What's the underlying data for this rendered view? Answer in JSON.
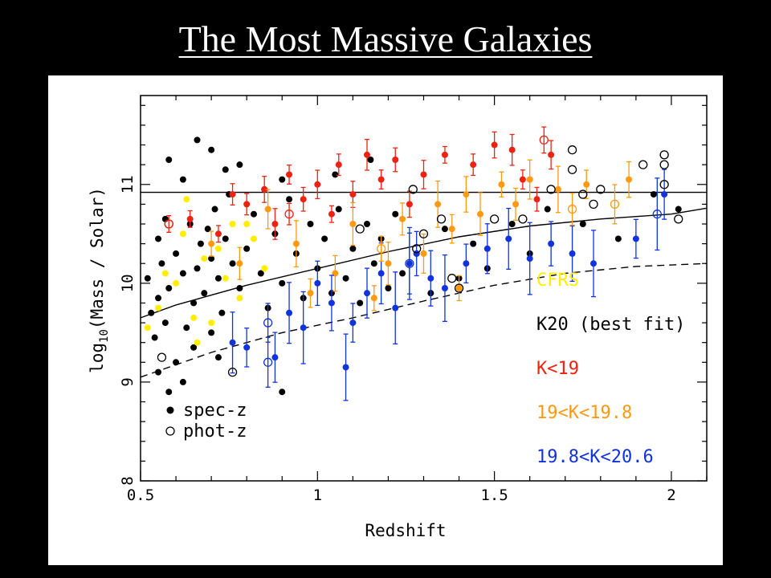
{
  "slide": {
    "title": "The Most Massive Galaxies"
  },
  "colors": {
    "background": "#000000",
    "title": "#ffffff",
    "panel": "#ffffff",
    "K20": "#000000",
    "CFRS": "#ffee00",
    "K19": "#ee2211",
    "K19_19.8": "#ff9911",
    "K19.8_20.6": "#1133dd"
  },
  "chart_data": {
    "type": "scatter",
    "xlabel": "Redshift",
    "ylabel_parts": {
      "base": "log",
      "sub": "10",
      "rest": "(Mass / Solar)"
    },
    "xlim": [
      0.5,
      2.1
    ],
    "ylim": [
      8,
      11.9
    ],
    "xticks": [
      "0.5",
      "1",
      "1.5",
      "2"
    ],
    "yticks": [
      "8",
      "9",
      "10",
      "11"
    ],
    "grid": false,
    "legend_color_position": "middle-right",
    "legend_marker_position": "bottom-left",
    "legend_color": [
      "CFRS",
      "K20 (best fit)",
      "K<19",
      "19<K<19.8",
      "19.8<K<20.6"
    ],
    "legend_marker": [
      "spec-z",
      "phot-z"
    ],
    "lines": [
      {
        "style": "solid",
        "x": [
          0.5,
          2.1
        ],
        "y": [
          10.92,
          10.92
        ]
      },
      {
        "style": "solid",
        "x": [
          0.5,
          0.6,
          0.8,
          1.0,
          1.2,
          1.4,
          1.6,
          1.8,
          2.0,
          2.1
        ],
        "y": [
          9.65,
          9.78,
          9.98,
          10.15,
          10.32,
          10.47,
          10.58,
          10.65,
          10.7,
          10.76
        ]
      },
      {
        "style": "dashed",
        "x": [
          0.5,
          0.7,
          0.9,
          1.1,
          1.3,
          1.5,
          1.7,
          1.9,
          2.1
        ],
        "y": [
          9.05,
          9.3,
          9.5,
          9.65,
          9.82,
          9.98,
          10.1,
          10.17,
          10.2
        ]
      }
    ],
    "series": [
      {
        "name": "K20 (best fit)",
        "marker": "spec-z",
        "points": [
          [
            0.52,
            10.05
          ],
          [
            0.53,
            9.7
          ],
          [
            0.54,
            9.45
          ],
          [
            0.55,
            9.85
          ],
          [
            0.56,
            10.2
          ],
          [
            0.57,
            9.6
          ],
          [
            0.58,
            9.95
          ],
          [
            0.55,
            10.45
          ],
          [
            0.57,
            10.65
          ],
          [
            0.6,
            10.3
          ],
          [
            0.62,
            10.1
          ],
          [
            0.63,
            9.55
          ],
          [
            0.64,
            10.6
          ],
          [
            0.65,
            9.8
          ],
          [
            0.66,
            10.15
          ],
          [
            0.67,
            10.4
          ],
          [
            0.68,
            9.9
          ],
          [
            0.69,
            10.55
          ],
          [
            0.7,
            10.25
          ],
          [
            0.7,
            9.5
          ],
          [
            0.71,
            10.75
          ],
          [
            0.72,
            10.05
          ],
          [
            0.73,
            9.7
          ],
          [
            0.74,
            10.45
          ],
          [
            0.75,
            10.9
          ],
          [
            0.76,
            10.2
          ],
          [
            0.78,
            9.95
          ],
          [
            0.8,
            10.35
          ],
          [
            0.82,
            10.7
          ],
          [
            0.84,
            10.1
          ],
          [
            0.86,
            9.75
          ],
          [
            0.88,
            10.5
          ],
          [
            0.9,
            10.0
          ],
          [
            0.92,
            10.85
          ],
          [
            0.94,
            10.3
          ],
          [
            0.96,
            9.85
          ],
          [
            0.98,
            10.6
          ],
          [
            1.0,
            10.15
          ],
          [
            1.02,
            10.45
          ],
          [
            1.04,
            9.9
          ],
          [
            1.06,
            10.75
          ],
          [
            1.08,
            10.05
          ],
          [
            1.1,
            10.35
          ],
          [
            1.12,
            9.8
          ],
          [
            1.14,
            10.6
          ],
          [
            1.16,
            10.2
          ],
          [
            1.18,
            10.45
          ],
          [
            1.2,
            9.95
          ],
          [
            1.22,
            10.7
          ],
          [
            1.24,
            10.1
          ],
          [
            1.28,
            10.3
          ],
          [
            1.32,
            9.9
          ],
          [
            1.36,
            10.55
          ],
          [
            1.4,
            10.05
          ],
          [
            1.44,
            10.4
          ],
          [
            1.48,
            10.15
          ],
          [
            1.55,
            10.6
          ],
          [
            1.6,
            10.3
          ],
          [
            1.65,
            10.75
          ],
          [
            1.75,
            10.6
          ],
          [
            1.85,
            10.45
          ],
          [
            1.95,
            10.9
          ],
          [
            2.02,
            10.75
          ],
          [
            0.58,
            11.25
          ],
          [
            0.62,
            11.05
          ],
          [
            0.66,
            11.45
          ],
          [
            0.7,
            11.35
          ],
          [
            0.74,
            11.15
          ],
          [
            0.78,
            11.2
          ],
          [
            0.85,
            10.95
          ],
          [
            0.9,
            11.05
          ],
          [
            1.05,
            11.1
          ],
          [
            1.15,
            11.25
          ],
          [
            0.55,
            9.1
          ],
          [
            0.6,
            9.2
          ],
          [
            0.65,
            9.35
          ],
          [
            0.58,
            8.9
          ],
          [
            0.62,
            9.0
          ],
          [
            0.72,
            9.25
          ],
          [
            0.9,
            8.9
          ]
        ]
      },
      {
        "name": "CFRS",
        "marker": "spec-z",
        "points": [
          [
            0.52,
            9.55
          ],
          [
            0.55,
            9.75
          ],
          [
            0.57,
            10.1
          ],
          [
            0.6,
            10.0
          ],
          [
            0.62,
            10.5
          ],
          [
            0.63,
            10.85
          ],
          [
            0.65,
            9.65
          ],
          [
            0.66,
            9.4
          ],
          [
            0.68,
            10.25
          ],
          [
            0.7,
            9.6
          ],
          [
            0.72,
            10.35
          ],
          [
            0.74,
            10.05
          ],
          [
            0.76,
            10.6
          ],
          [
            0.78,
            9.85
          ],
          [
            0.8,
            10.6
          ],
          [
            0.82,
            10.45
          ],
          [
            0.85,
            10.15
          ]
        ]
      },
      {
        "name": "K<19",
        "marker": "spec-z",
        "points": [
          [
            0.72,
            10.5
          ],
          [
            0.8,
            10.8
          ],
          [
            0.85,
            10.95
          ],
          [
            0.88,
            10.6
          ],
          [
            0.92,
            11.1
          ],
          [
            0.96,
            10.85
          ],
          [
            1.0,
            11.0
          ],
          [
            1.04,
            10.7
          ],
          [
            1.06,
            11.2
          ],
          [
            1.1,
            10.9
          ],
          [
            1.14,
            11.3
          ],
          [
            1.18,
            11.05
          ],
          [
            1.22,
            11.25
          ],
          [
            1.3,
            11.1
          ],
          [
            1.36,
            11.3
          ],
          [
            1.44,
            11.2
          ],
          [
            1.5,
            11.4
          ],
          [
            1.55,
            11.35
          ],
          [
            1.58,
            11.05
          ],
          [
            1.62,
            10.85
          ],
          [
            1.66,
            11.3
          ],
          [
            0.64,
            10.65
          ],
          [
            0.76,
            10.9
          ],
          [
            1.26,
            10.8
          ]
        ]
      },
      {
        "name": "19<K<19.8",
        "marker": "spec-z",
        "points": [
          [
            0.7,
            10.4
          ],
          [
            0.78,
            10.2
          ],
          [
            0.86,
            10.75
          ],
          [
            0.94,
            10.4
          ],
          [
            0.98,
            9.9
          ],
          [
            1.05,
            10.1
          ],
          [
            1.1,
            10.6
          ],
          [
            1.16,
            9.85
          ],
          [
            1.24,
            10.65
          ],
          [
            1.3,
            10.3
          ],
          [
            1.34,
            10.8
          ],
          [
            1.38,
            10.55
          ],
          [
            1.42,
            10.9
          ],
          [
            1.46,
            10.7
          ],
          [
            1.52,
            11.0
          ],
          [
            1.56,
            10.8
          ],
          [
            1.6,
            11.05
          ],
          [
            1.68,
            10.95
          ],
          [
            1.76,
            11.0
          ],
          [
            1.88,
            11.05
          ],
          [
            1.2,
            10.2
          ],
          [
            1.4,
            9.95
          ]
        ]
      },
      {
        "name": "19.8<K<20.6",
        "marker": "spec-z",
        "points": [
          [
            0.8,
            9.35
          ],
          [
            0.88,
            9.25
          ],
          [
            0.92,
            9.7
          ],
          [
            0.96,
            9.55
          ],
          [
            1.0,
            10.0
          ],
          [
            1.04,
            9.8
          ],
          [
            1.08,
            9.15
          ],
          [
            1.1,
            9.6
          ],
          [
            1.14,
            9.9
          ],
          [
            1.18,
            10.1
          ],
          [
            1.22,
            9.75
          ],
          [
            1.28,
            10.3
          ],
          [
            1.32,
            10.05
          ],
          [
            1.36,
            9.95
          ],
          [
            1.42,
            10.2
          ],
          [
            1.48,
            10.35
          ],
          [
            1.54,
            10.45
          ],
          [
            1.6,
            10.25
          ],
          [
            1.66,
            10.4
          ],
          [
            1.72,
            10.3
          ],
          [
            1.78,
            10.2
          ],
          [
            1.9,
            10.45
          ],
          [
            1.98,
            10.9
          ],
          [
            0.76,
            9.4
          ],
          [
            1.26,
            10.2
          ]
        ]
      },
      {
        "name": "K20 (best fit)",
        "marker": "phot-z",
        "points": [
          [
            0.56,
            9.25
          ],
          [
            0.58,
            10.6
          ],
          [
            0.76,
            9.1
          ],
          [
            1.27,
            10.95
          ],
          [
            1.3,
            10.5
          ],
          [
            1.35,
            10.65
          ],
          [
            1.38,
            10.05
          ],
          [
            1.4,
            9.95
          ],
          [
            1.5,
            10.65
          ],
          [
            1.58,
            10.65
          ],
          [
            1.66,
            10.95
          ],
          [
            1.72,
            11.15
          ],
          [
            1.72,
            11.35
          ],
          [
            1.75,
            10.9
          ],
          [
            1.78,
            10.8
          ],
          [
            1.8,
            10.95
          ],
          [
            1.92,
            11.2
          ],
          [
            1.98,
            11.3
          ],
          [
            1.98,
            11.2
          ],
          [
            1.98,
            11.0
          ],
          [
            2.02,
            10.65
          ],
          [
            1.28,
            10.35
          ],
          [
            1.12,
            10.55
          ]
        ]
      },
      {
        "name": "K<19",
        "marker": "phot-z",
        "points": [
          [
            0.58,
            10.6
          ],
          [
            0.92,
            10.7
          ],
          [
            1.64,
            11.45
          ]
        ]
      },
      {
        "name": "19<K<19.8",
        "marker": "phot-z",
        "points": [
          [
            1.18,
            10.35
          ],
          [
            1.72,
            10.75
          ],
          [
            1.84,
            10.8
          ]
        ]
      },
      {
        "name": "19.8<K<20.6",
        "marker": "phot-z",
        "points": [
          [
            0.86,
            9.6
          ],
          [
            0.86,
            9.2
          ],
          [
            1.26,
            10.2
          ],
          [
            1.96,
            10.7
          ]
        ]
      }
    ]
  }
}
